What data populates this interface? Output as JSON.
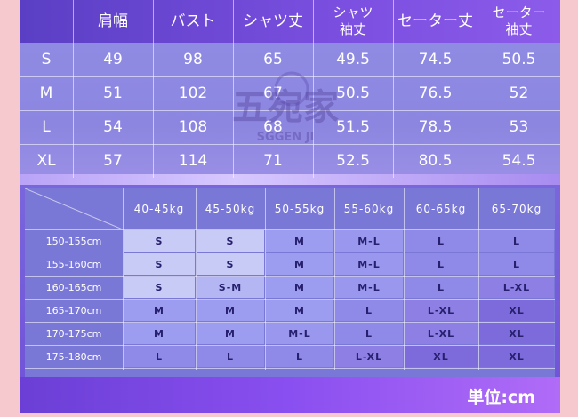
{
  "size_chart": {
    "headers": [
      "肩幅",
      "バスト",
      "シャツ丈",
      "シャツ\n袖丈",
      "セーター丈",
      "セーター\n袖丈"
    ],
    "rows": [
      {
        "size": "S",
        "values": [
          "49",
          "98",
          "65",
          "49.5",
          "74.5",
          "50.5"
        ]
      },
      {
        "size": "M",
        "values": [
          "51",
          "102",
          "67",
          "50.5",
          "76.5",
          "52"
        ]
      },
      {
        "size": "L",
        "values": [
          "54",
          "108",
          "68",
          "51.5",
          "78.5",
          "53"
        ]
      },
      {
        "size": "XL",
        "values": [
          "57",
          "114",
          "71",
          "52.5",
          "80.5",
          "54.5"
        ]
      }
    ]
  },
  "watermark": {
    "main": "五宛家",
    "sub": "SGGEN JI"
  },
  "recommendation": {
    "weights": [
      "40-45kg",
      "45-50kg",
      "50-55kg",
      "55-60kg",
      "60-65kg",
      "65-70kg"
    ],
    "rows": [
      {
        "height": "150-155cm",
        "sizes": [
          "S",
          "S",
          "M",
          "M-L",
          "L",
          "L"
        ]
      },
      {
        "height": "155-160cm",
        "sizes": [
          "S",
          "S",
          "M",
          "M-L",
          "L",
          "L"
        ]
      },
      {
        "height": "160-165cm",
        "sizes": [
          "S",
          "S-M",
          "M",
          "M-L",
          "L",
          "L-XL"
        ]
      },
      {
        "height": "165-170cm",
        "sizes": [
          "M",
          "M",
          "M",
          "L",
          "L-XL",
          "XL"
        ]
      },
      {
        "height": "170-175cm",
        "sizes": [
          "M",
          "M",
          "M-L",
          "L",
          "L-XL",
          "XL"
        ]
      },
      {
        "height": "175-180cm",
        "sizes": [
          "L",
          "L",
          "L",
          "L-XL",
          "XL",
          "XL"
        ]
      }
    ]
  },
  "unit_label": "単位:cm",
  "colors": {
    "S": "#c7cbf6",
    "S-M": "#b3b6f2",
    "M": "#9c9df0",
    "M-L": "#9a98ee",
    "L": "#8f8ae8",
    "L-XL": "#8d7fe3",
    "XL": "#7d6bdc"
  }
}
